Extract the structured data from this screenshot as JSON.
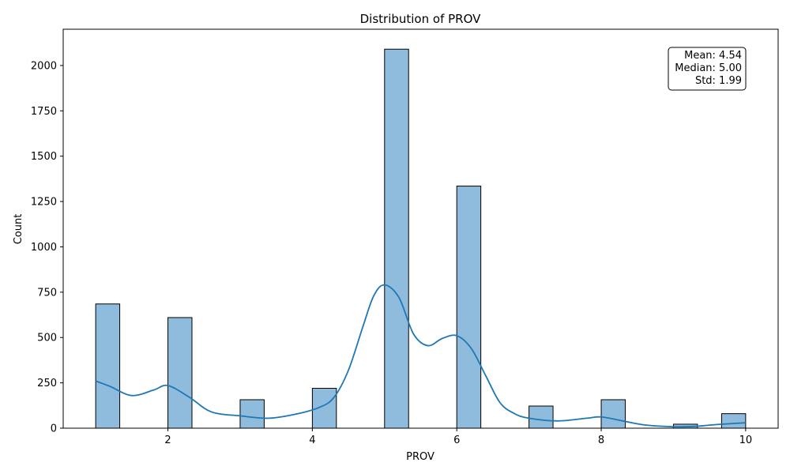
{
  "chart_data": {
    "type": "bar",
    "title": "Distribution of PROV",
    "xlabel": "PROV",
    "ylabel": "Count",
    "xlim": [
      0.55,
      10.45
    ],
    "ylim": [
      0,
      2200
    ],
    "xticks": [
      2,
      4,
      6,
      8,
      10
    ],
    "yticks": [
      0,
      250,
      500,
      750,
      1000,
      1250,
      1500,
      1750,
      2000
    ],
    "bars": [
      {
        "x0": 1.0,
        "x1": 1.333,
        "count": 685
      },
      {
        "x0": 2.0,
        "x1": 2.333,
        "count": 610
      },
      {
        "x0": 3.0,
        "x1": 3.333,
        "count": 157
      },
      {
        "x0": 4.0,
        "x1": 4.333,
        "count": 220
      },
      {
        "x0": 5.0,
        "x1": 5.333,
        "count": 2090
      },
      {
        "x0": 6.0,
        "x1": 6.333,
        "count": 1335
      },
      {
        "x0": 7.0,
        "x1": 7.333,
        "count": 122
      },
      {
        "x0": 8.0,
        "x1": 8.333,
        "count": 157
      },
      {
        "x0": 9.0,
        "x1": 9.333,
        "count": 22
      },
      {
        "x0": 9.667,
        "x1": 10.0,
        "count": 80
      }
    ],
    "kde": {
      "x": [
        1.0,
        1.2,
        1.5,
        1.8,
        2.0,
        2.3,
        2.6,
        3.0,
        3.4,
        3.8,
        4.1,
        4.3,
        4.5,
        4.7,
        4.85,
        5.0,
        5.2,
        5.4,
        5.6,
        5.8,
        6.0,
        6.2,
        6.4,
        6.6,
        6.8,
        7.0,
        7.4,
        7.8,
        8.0,
        8.3,
        8.6,
        9.0,
        9.3,
        9.6,
        10.0
      ],
      "y": [
        260,
        230,
        180,
        210,
        235,
        170,
        90,
        68,
        55,
        80,
        115,
        170,
        320,
        560,
        730,
        790,
        720,
        520,
        455,
        495,
        510,
        440,
        290,
        140,
        80,
        55,
        40,
        55,
        62,
        40,
        18,
        8,
        10,
        20,
        30
      ]
    },
    "grid": false,
    "bar_color": "#8fbcdd",
    "bar_edge_color": "#000000",
    "line_color": "#1f77b4"
  },
  "stats_box": {
    "lines": [
      "Mean: 4.54",
      "Median: 5.00",
      "Std: 1.99"
    ]
  }
}
